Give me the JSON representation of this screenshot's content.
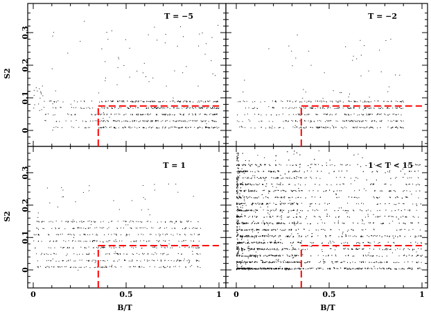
{
  "chart_data": {
    "type": "scatter",
    "layout": "2x2 shared axes",
    "xlabel": "B/T",
    "ylabel": "S2",
    "xlim": [
      -0.03,
      1.03
    ],
    "ylim": [
      -0.05,
      0.38
    ],
    "x_ticks": [
      0,
      0.5,
      1
    ],
    "x_tick_labels": [
      "0",
      "0.5",
      "1"
    ],
    "y_ticks": [
      0,
      0.1,
      0.2,
      0.3
    ],
    "y_tick_labels": [
      "0",
      "0.1",
      "0.2",
      "0.3"
    ],
    "grid": false,
    "marker_color": "#000000",
    "threshold_color": "#ff0000",
    "threshold": {
      "B_T": 0.35,
      "S2": 0.075,
      "style": "dashed"
    },
    "panels": [
      {
        "id": "t-minus-5",
        "title": "T = −5",
        "point_count_approx": 700,
        "distribution": {
          "x_range": [
            0,
            1
          ],
          "y_bands": [
            0.01,
            0.03,
            0.05,
            0.07,
            0.09
          ],
          "y_max": 0.35,
          "density": "concentrated at B/T 0.4-1.0"
        }
      },
      {
        "id": "t-minus-2",
        "title": "T = −2",
        "point_count_approx": 550,
        "distribution": {
          "x_range": [
            0,
            1
          ],
          "y_bands": [
            0.01,
            0.03,
            0.05,
            0.07,
            0.09
          ],
          "y_max": 0.3,
          "density": "concentrated at B/T 0.35-0.9"
        }
      },
      {
        "id": "t-1",
        "title": "T = 1",
        "point_count_approx": 650,
        "distribution": {
          "x_range": [
            0,
            1
          ],
          "y_bands": [
            0.01,
            0.03,
            0.05,
            0.07,
            0.09,
            0.11,
            0.13,
            0.15
          ],
          "y_max": 0.27,
          "density": "spread across B/T 0-0.9"
        }
      },
      {
        "id": "t-1-15",
        "title": "1 < T < 15",
        "point_count_approx": 3500,
        "distribution": {
          "x_range": [
            0,
            1
          ],
          "y_bands": "many",
          "y_max": 0.37,
          "density": "dense near B/T 0-0.3"
        }
      }
    ]
  }
}
